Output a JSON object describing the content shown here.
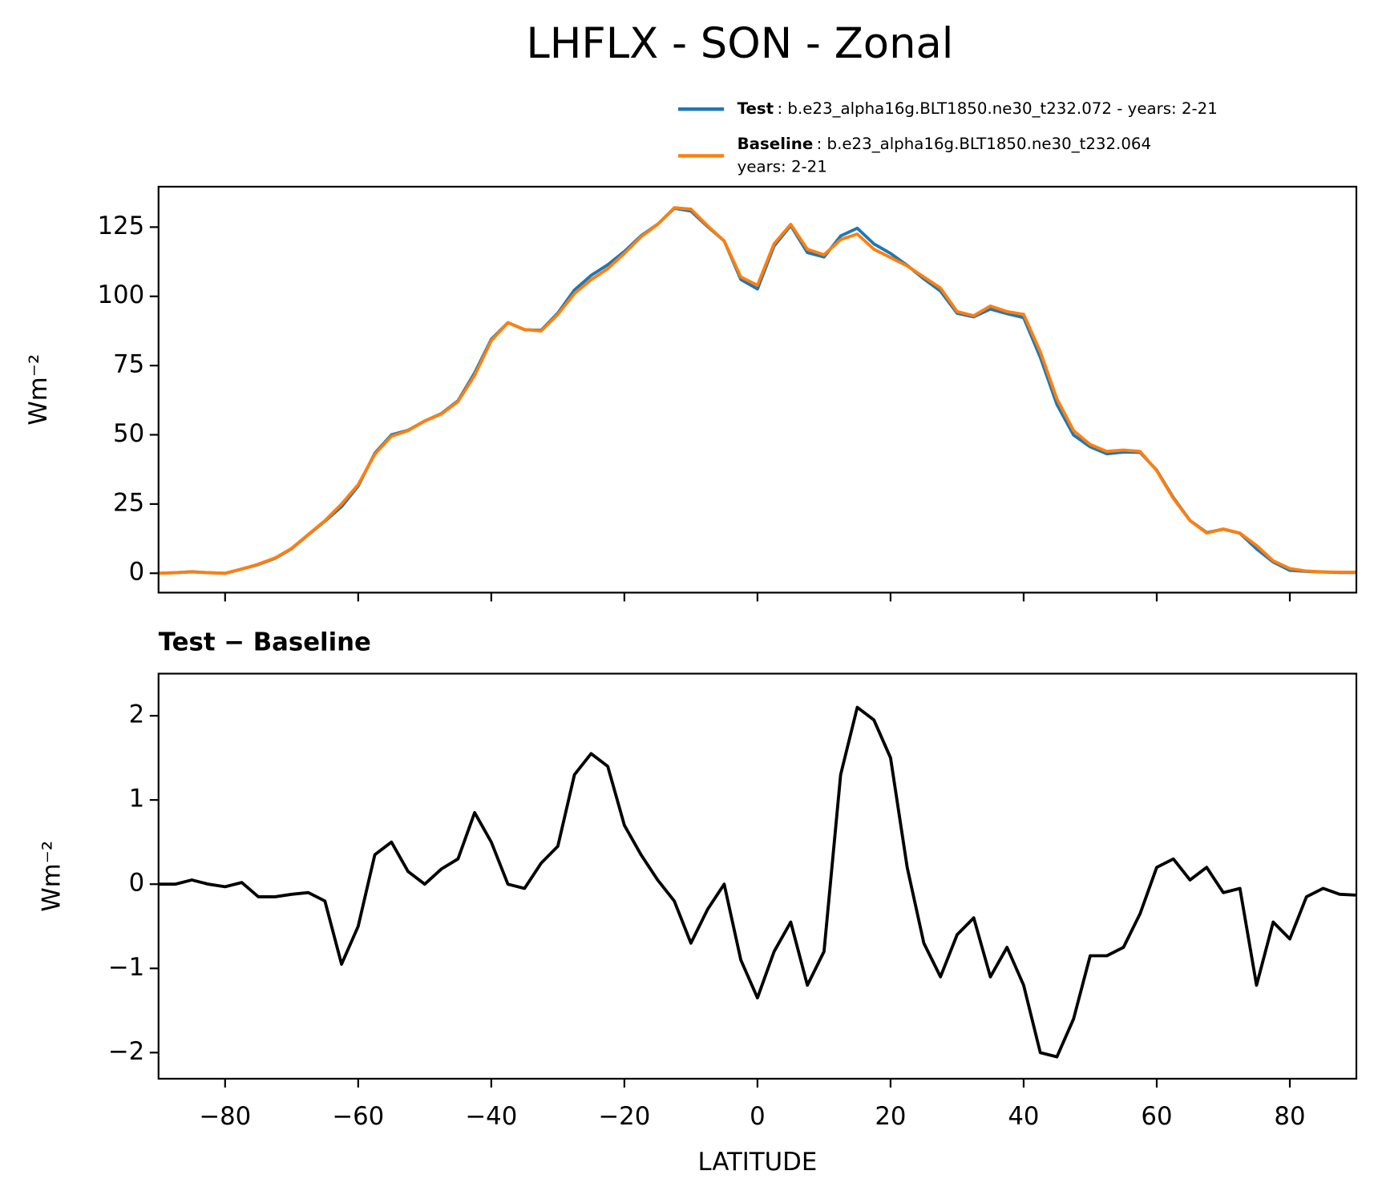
{
  "title": "LHFLX - SON - Zonal",
  "chart_data": [
    {
      "type": "line",
      "ylabel": "Wm⁻²",
      "x": [
        -90,
        -87.5,
        -85,
        -82.5,
        -80,
        -77.5,
        -75,
        -72.5,
        -70,
        -67.5,
        -65,
        -62.5,
        -60,
        -57.5,
        -55,
        -52.5,
        -50,
        -47.5,
        -45,
        -42.5,
        -40,
        -37.5,
        -35,
        -32.5,
        -30,
        -27.5,
        -25,
        -22.5,
        -20,
        -17.5,
        -15,
        -12.5,
        -10,
        -7.5,
        -5,
        -2.5,
        0,
        2.5,
        5,
        7.5,
        10,
        12.5,
        15,
        17.5,
        20,
        22.5,
        25,
        27.5,
        30,
        32.5,
        35,
        37.5,
        40,
        42.5,
        45,
        47.5,
        50,
        52.5,
        55,
        57.5,
        60,
        62.5,
        65,
        67.5,
        70,
        72.5,
        75,
        77.5,
        80,
        82.5,
        85,
        87.5,
        90
      ],
      "series": [
        {
          "name": "Test",
          "label": ": b.e23_alpha16g.BLT1850.ne30_t232.072 - years: 2-21",
          "color": "#1f77b4",
          "values": [
            0,
            0.2,
            0.55,
            0.2,
            -0.03,
            1.52,
            3.15,
            5.35,
            8.88,
            13.9,
            18.8,
            24.05,
            31.5,
            43.35,
            50,
            51.65,
            55,
            57.68,
            62.3,
            72.35,
            84.5,
            90.5,
            87.95,
            87.75,
            93.95,
            102.3,
            107.55,
            111.4,
            116.2,
            121.85,
            126.05,
            131.8,
            130.8,
            125.2,
            120,
            106.1,
            102.65,
            118.2,
            125.55,
            115.8,
            114.2,
            121.8,
            124.6,
            118.95,
            115.5,
            111.2,
            106.3,
            101.9,
            93.9,
            92.6,
            95.4,
            93.75,
            92.3,
            78,
            60.95,
            49.9,
            45.65,
            43.15,
            43.75,
            43.65,
            37.2,
            27.3,
            19.05,
            14.7,
            15.9,
            14.45,
            8.8,
            4.05,
            1.05,
            0.65,
            0.45,
            0.28,
            0.27
          ]
        },
        {
          "name": "Baseline",
          "label": [
            ": b.e23_alpha16g.BLT1850.ne30_t232.064",
            "years: 2-21"
          ],
          "color": "#ff7f0e",
          "values": [
            0,
            0.2,
            0.5,
            0.2,
            0,
            1.5,
            3.3,
            5.5,
            9,
            14,
            19,
            25,
            32,
            43,
            49.5,
            51.5,
            55,
            57.5,
            62,
            71.5,
            84,
            90.5,
            88,
            87.5,
            93.5,
            101,
            106,
            110,
            115.5,
            121.5,
            126,
            132,
            131.5,
            125.5,
            120,
            107,
            104,
            119,
            126,
            117,
            115,
            120.5,
            122.5,
            117,
            114,
            111,
            107,
            103,
            94.5,
            93,
            96.5,
            94.5,
            93.5,
            80,
            63,
            51.5,
            46.5,
            44,
            44.5,
            44,
            37,
            27,
            19,
            14.5,
            16,
            14.5,
            10,
            4.5,
            1.7,
            0.8,
            0.5,
            0.4,
            0.4
          ]
        }
      ],
      "xlim": [
        -90,
        90
      ],
      "xticks": [
        -80,
        -60,
        -40,
        -20,
        0,
        20,
        40,
        60,
        80
      ],
      "show_xticklabels": false,
      "ylim": [
        -7,
        139.6
      ],
      "yticks": [
        0,
        25,
        50,
        75,
        100,
        125
      ]
    },
    {
      "type": "line",
      "title": "Test − Baseline",
      "xlabel": "LATITUDE",
      "ylabel": "Wm⁻²",
      "x": [
        -90,
        -87.5,
        -85,
        -82.5,
        -80,
        -77.5,
        -75,
        -72.5,
        -70,
        -67.5,
        -65,
        -62.5,
        -60,
        -57.5,
        -55,
        -52.5,
        -50,
        -47.5,
        -45,
        -42.5,
        -40,
        -37.5,
        -35,
        -32.5,
        -30,
        -27.5,
        -25,
        -22.5,
        -20,
        -17.5,
        -15,
        -12.5,
        -10,
        -7.5,
        -5,
        -2.5,
        0,
        2.5,
        5,
        7.5,
        10,
        12.5,
        15,
        17.5,
        20,
        22.5,
        25,
        27.5,
        30,
        32.5,
        35,
        37.5,
        40,
        42.5,
        45,
        47.5,
        50,
        52.5,
        55,
        57.5,
        60,
        62.5,
        65,
        67.5,
        70,
        72.5,
        75,
        77.5,
        80,
        82.5,
        85,
        87.5,
        90
      ],
      "series": [
        {
          "color": "#000000",
          "values": [
            0,
            0,
            0.05,
            0,
            -0.03,
            0.02,
            -0.15,
            -0.15,
            -0.12,
            -0.1,
            -0.2,
            -0.95,
            -0.5,
            0.35,
            0.5,
            0.15,
            0,
            0.18,
            0.3,
            0.85,
            0.5,
            0,
            -0.05,
            0.25,
            0.45,
            1.3,
            1.55,
            1.4,
            0.7,
            0.35,
            0.05,
            -0.2,
            -0.7,
            -0.3,
            0,
            -0.9,
            -1.35,
            -0.8,
            -0.45,
            -1.2,
            -0.8,
            1.3,
            2.1,
            1.95,
            1.5,
            0.2,
            -0.7,
            -1.1,
            -0.6,
            -0.4,
            -1.1,
            -0.75,
            -1.2,
            -2,
            -2.05,
            -1.6,
            -0.85,
            -0.85,
            -0.75,
            -0.35,
            0.2,
            0.3,
            0.05,
            0.2,
            -0.1,
            -0.05,
            -1.2,
            -0.45,
            -0.65,
            -0.15,
            -0.05,
            -0.12,
            -0.13
          ]
        }
      ],
      "xlim": [
        -90,
        90
      ],
      "xticks": [
        {
          "value": -80,
          "label": "−80"
        },
        {
          "value": -60,
          "label": "−60"
        },
        {
          "value": -40,
          "label": "−40"
        },
        {
          "value": -20,
          "label": "−20"
        },
        0,
        20,
        40,
        60,
        80
      ],
      "show_xticklabels": true,
      "ylim": [
        -2.31,
        2.5
      ],
      "yticks": [
        {
          "value": -2,
          "label": "−2"
        },
        {
          "value": -1,
          "label": "−1"
        },
        0,
        1,
        2
      ]
    }
  ]
}
